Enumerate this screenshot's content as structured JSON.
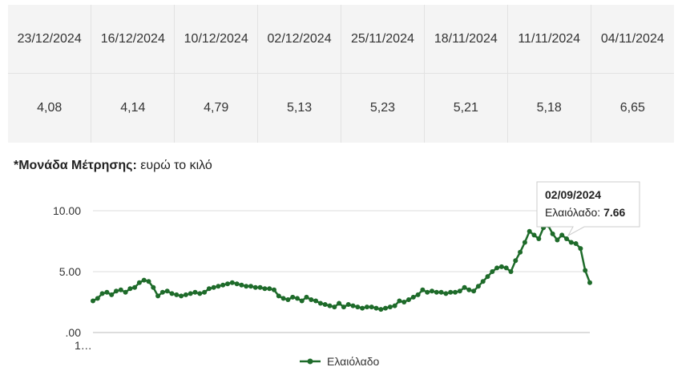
{
  "table": {
    "dates": [
      "23/12/2024",
      "16/12/2024",
      "10/12/2024",
      "02/12/2024",
      "25/11/2024",
      "18/11/2024",
      "11/11/2024",
      "04/11/2024"
    ],
    "values": [
      "4,08",
      "4,14",
      "4,79",
      "5,13",
      "5,23",
      "5,21",
      "5,18",
      "6,65"
    ]
  },
  "unit_note": {
    "label": "*Μονάδα Μέτρησης:",
    "value": "ευρώ το κιλό"
  },
  "chart_data": {
    "type": "line",
    "title": "",
    "xlabel": "",
    "ylabel": "",
    "ylim": [
      0,
      10
    ],
    "y_ticks": [
      "10.00",
      "5.00",
      ".00"
    ],
    "x_tick_label": "1…",
    "grid": true,
    "legend_placement": "bottom-center",
    "series": [
      {
        "name": "Ελαιόλαδο",
        "color": "#1e6b2a",
        "values": [
          2.6,
          2.8,
          3.2,
          3.3,
          3.1,
          3.4,
          3.5,
          3.3,
          3.6,
          3.7,
          4.1,
          4.3,
          4.2,
          3.7,
          3.0,
          3.3,
          3.4,
          3.2,
          3.1,
          3.0,
          3.1,
          3.2,
          3.3,
          3.2,
          3.3,
          3.6,
          3.7,
          3.8,
          3.9,
          4.0,
          4.1,
          4.0,
          3.9,
          3.8,
          3.8,
          3.7,
          3.7,
          3.6,
          3.6,
          3.5,
          3.0,
          2.8,
          2.7,
          2.9,
          2.8,
          2.6,
          2.9,
          2.7,
          2.6,
          2.4,
          2.3,
          2.2,
          2.1,
          2.4,
          2.1,
          2.3,
          2.2,
          2.1,
          2.0,
          2.1,
          2.1,
          2.0,
          1.9,
          2.0,
          2.1,
          2.2,
          2.6,
          2.5,
          2.7,
          2.9,
          3.1,
          3.5,
          3.3,
          3.4,
          3.3,
          3.3,
          3.2,
          3.3,
          3.3,
          3.4,
          3.7,
          3.5,
          3.4,
          3.8,
          4.2,
          4.6,
          5.0,
          5.3,
          5.4,
          5.3,
          5.0,
          5.9,
          6.6,
          7.4,
          8.3,
          8.0,
          7.7,
          8.6,
          8.8,
          8.1,
          7.6,
          8.0,
          7.7,
          7.4,
          7.3,
          6.9,
          5.1,
          4.1
        ]
      }
    ],
    "tooltip": {
      "date": "02/09/2024",
      "series": "Ελαιόλαδο",
      "value": "7.66"
    }
  }
}
